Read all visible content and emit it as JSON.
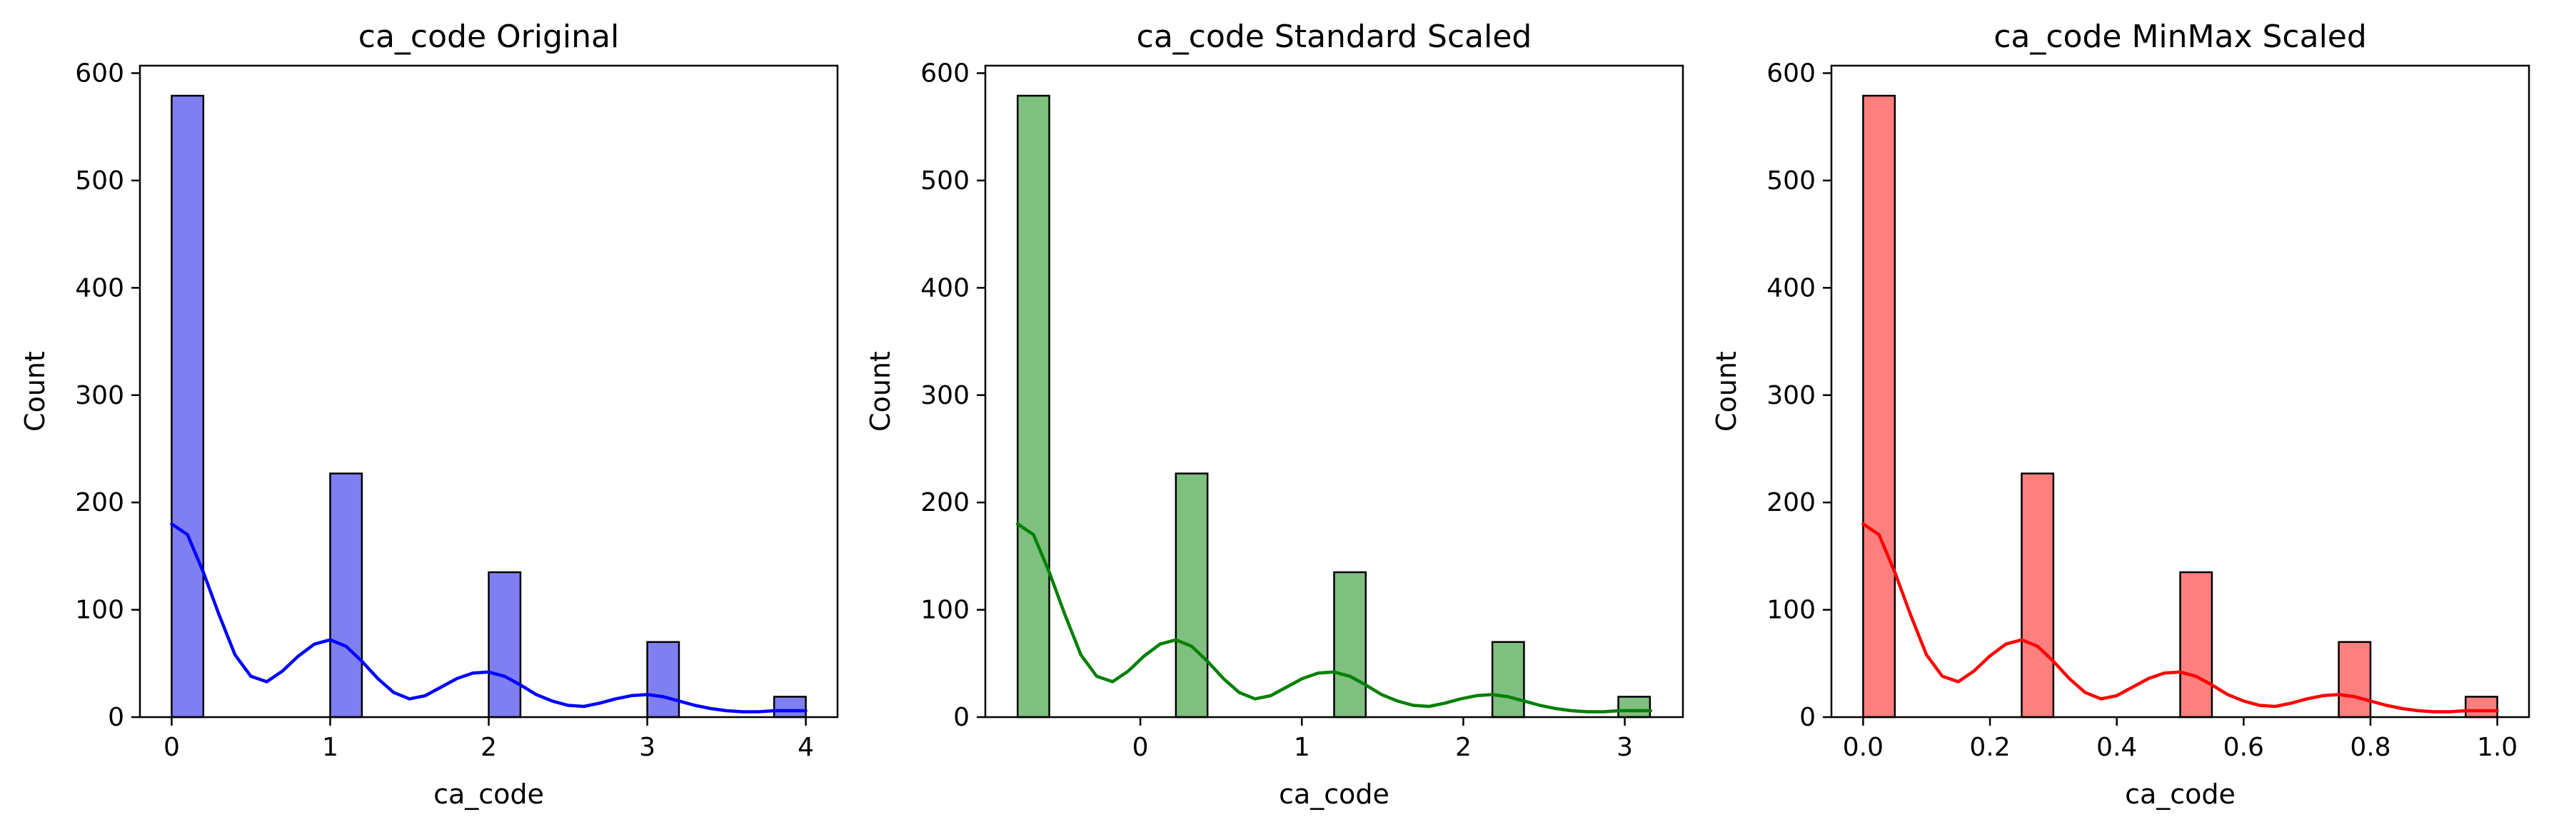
{
  "chart_data": [
    {
      "type": "bar",
      "title": "ca_code Original",
      "xlabel": "ca_code",
      "ylabel": "Count",
      "xlim": [
        -0.2,
        4.2
      ],
      "ylim": [
        0,
        607
      ],
      "xticks": [
        0,
        1,
        2,
        3,
        4
      ],
      "xtick_labels": [
        "0",
        "1",
        "2",
        "3",
        "4"
      ],
      "yticks": [
        0,
        100,
        200,
        300,
        400,
        500,
        600
      ],
      "ytick_labels": [
        "0",
        "100",
        "200",
        "300",
        "400",
        "500",
        "600"
      ],
      "bin_width": 0.2,
      "bins": [
        {
          "start": 0.0,
          "count": 579
        },
        {
          "start": 1.0,
          "count": 227
        },
        {
          "start": 2.0,
          "count": 135
        },
        {
          "start": 3.0,
          "count": 70
        },
        {
          "start": 3.8,
          "count": 19
        }
      ],
      "kde_x": [
        0.0,
        0.1,
        0.2,
        0.3,
        0.4,
        0.5,
        0.6,
        0.7,
        0.8,
        0.9,
        1.0,
        1.1,
        1.2,
        1.3,
        1.4,
        1.5,
        1.6,
        1.7,
        1.8,
        1.9,
        2.0,
        2.1,
        2.2,
        2.3,
        2.4,
        2.5,
        2.6,
        2.7,
        2.8,
        2.9,
        3.0,
        3.1,
        3.2,
        3.3,
        3.4,
        3.5,
        3.6,
        3.7,
        3.8,
        3.9,
        4.0
      ],
      "kde_y": [
        180,
        170,
        135,
        95,
        58,
        38,
        33,
        43,
        57,
        68,
        72,
        66,
        52,
        36,
        23,
        17,
        20,
        28,
        36,
        41,
        42,
        38,
        30,
        21,
        15,
        11,
        10,
        13,
        17,
        20,
        21,
        19,
        15,
        11,
        8,
        6,
        5,
        5,
        6,
        6,
        6
      ],
      "bar_color": "#7f7ff2",
      "kde_color": "#0000ff"
    },
    {
      "type": "bar",
      "title": "ca_code Standard Scaled",
      "xlabel": "ca_code",
      "ylabel": "Count",
      "xlim": [
        -0.96,
        3.36
      ],
      "ylim": [
        0,
        607
      ],
      "xticks": [
        0,
        1,
        2,
        3
      ],
      "xtick_labels": [
        "0",
        "1",
        "2",
        "3"
      ],
      "yticks": [
        0,
        100,
        200,
        300,
        400,
        500,
        600
      ],
      "ytick_labels": [
        "0",
        "100",
        "200",
        "300",
        "400",
        "500",
        "600"
      ],
      "bin_width": 0.196,
      "bins": [
        {
          "start": -0.76,
          "count": 579
        },
        {
          "start": 0.22,
          "count": 227
        },
        {
          "start": 1.2,
          "count": 135
        },
        {
          "start": 2.18,
          "count": 70
        },
        {
          "start": 2.96,
          "count": 19
        }
      ],
      "kde_x": [
        -0.76,
        -0.662,
        -0.564,
        -0.466,
        -0.368,
        -0.27,
        -0.172,
        -0.074,
        0.024,
        0.122,
        0.22,
        0.318,
        0.416,
        0.514,
        0.612,
        0.71,
        0.808,
        0.906,
        1.004,
        1.102,
        1.2,
        1.298,
        1.396,
        1.494,
        1.592,
        1.69,
        1.788,
        1.886,
        1.984,
        2.082,
        2.18,
        2.278,
        2.376,
        2.474,
        2.572,
        2.67,
        2.768,
        2.866,
        2.964,
        3.062,
        3.16
      ],
      "kde_y": [
        180,
        170,
        135,
        95,
        58,
        38,
        33,
        43,
        57,
        68,
        72,
        66,
        52,
        36,
        23,
        17,
        20,
        28,
        36,
        41,
        42,
        38,
        30,
        21,
        15,
        11,
        10,
        13,
        17,
        20,
        21,
        19,
        15,
        11,
        8,
        6,
        5,
        5,
        6,
        6,
        6
      ],
      "bar_color": "#7fbf7f",
      "kde_color": "#008000"
    },
    {
      "type": "bar",
      "title": "ca_code MinMax Scaled",
      "xlabel": "ca_code",
      "ylabel": "Count",
      "xlim": [
        -0.05,
        1.05
      ],
      "ylim": [
        0,
        607
      ],
      "xticks": [
        0.0,
        0.2,
        0.4,
        0.6,
        0.8,
        1.0
      ],
      "xtick_labels": [
        "0.0",
        "0.2",
        "0.4",
        "0.6",
        "0.8",
        "1.0"
      ],
      "yticks": [
        0,
        100,
        200,
        300,
        400,
        500,
        600
      ],
      "ytick_labels": [
        "0",
        "100",
        "200",
        "300",
        "400",
        "500",
        "600"
      ],
      "bin_width": 0.05,
      "bins": [
        {
          "start": 0.0,
          "count": 579
        },
        {
          "start": 0.25,
          "count": 227
        },
        {
          "start": 0.5,
          "count": 135
        },
        {
          "start": 0.75,
          "count": 70
        },
        {
          "start": 0.95,
          "count": 19
        }
      ],
      "kde_x": [
        0.0,
        0.025,
        0.05,
        0.075,
        0.1,
        0.125,
        0.15,
        0.175,
        0.2,
        0.225,
        0.25,
        0.275,
        0.3,
        0.325,
        0.35,
        0.375,
        0.4,
        0.425,
        0.45,
        0.475,
        0.5,
        0.525,
        0.55,
        0.575,
        0.6,
        0.625,
        0.65,
        0.675,
        0.7,
        0.725,
        0.75,
        0.775,
        0.8,
        0.825,
        0.85,
        0.875,
        0.9,
        0.925,
        0.95,
        0.975,
        1.0
      ],
      "kde_y": [
        180,
        170,
        135,
        95,
        58,
        38,
        33,
        43,
        57,
        68,
        72,
        66,
        52,
        36,
        23,
        17,
        20,
        28,
        36,
        41,
        42,
        38,
        30,
        21,
        15,
        11,
        10,
        13,
        17,
        20,
        21,
        19,
        15,
        11,
        8,
        6,
        5,
        5,
        6,
        6,
        6
      ],
      "bar_color": "#ff7f7f",
      "kde_color": "#ff0000"
    }
  ]
}
